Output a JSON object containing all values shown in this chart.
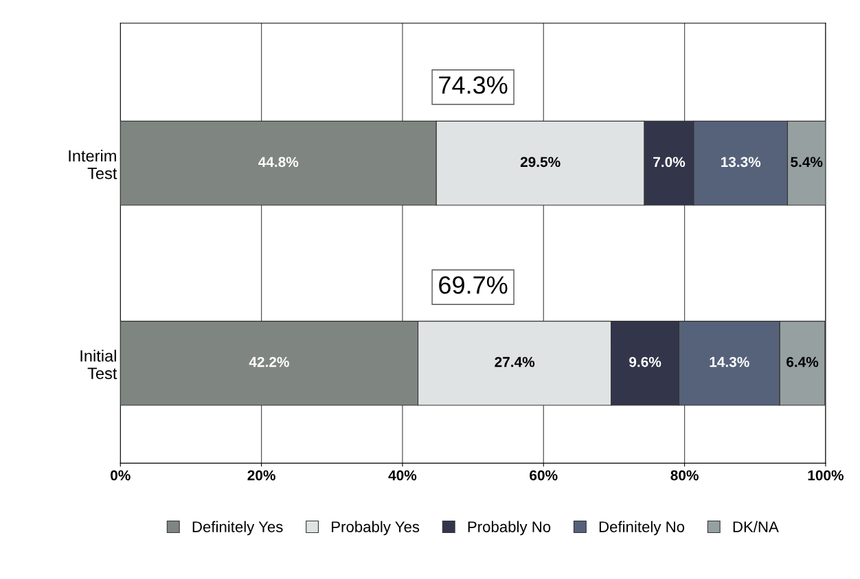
{
  "chart_data": {
    "type": "bar",
    "orientation": "horizontal",
    "stacked": true,
    "categories": [
      "Interim\nTest",
      "Initial\nTest"
    ],
    "series": [
      {
        "name": "Definitely Yes",
        "color": "#7f8580",
        "values": [
          44.8,
          42.2
        ],
        "value_labels": [
          "44.8%",
          "42.2%"
        ]
      },
      {
        "name": "Probably Yes",
        "color": "#dfe3e3",
        "values": [
          29.5,
          27.4
        ],
        "value_labels": [
          "29.5%",
          "27.4%"
        ]
      },
      {
        "name": "Probably No",
        "color": "#33364a",
        "values": [
          7.0,
          9.6
        ],
        "value_labels": [
          "7.0%",
          "9.6%"
        ]
      },
      {
        "name": "Definitely No",
        "color": "#56627a",
        "values": [
          13.3,
          14.3
        ],
        "value_labels": [
          "13.3%",
          "14.3%"
        ]
      },
      {
        "name": "DK/NA",
        "color": "#96a0a0",
        "values": [
          5.4,
          6.4
        ],
        "value_labels": [
          "5.4%",
          "6.4%"
        ]
      }
    ],
    "annotations": [
      "74.3%",
      "69.7%"
    ],
    "xlim": [
      0,
      100
    ],
    "xticks": [
      {
        "value": 0,
        "label": "0%"
      },
      {
        "value": 20,
        "label": "20%"
      },
      {
        "value": 40,
        "label": "40%"
      },
      {
        "value": 60,
        "label": "60%"
      },
      {
        "value": 80,
        "label": "80%"
      },
      {
        "value": 100,
        "label": "100%"
      }
    ],
    "grid": "x",
    "legend": "bottom"
  }
}
